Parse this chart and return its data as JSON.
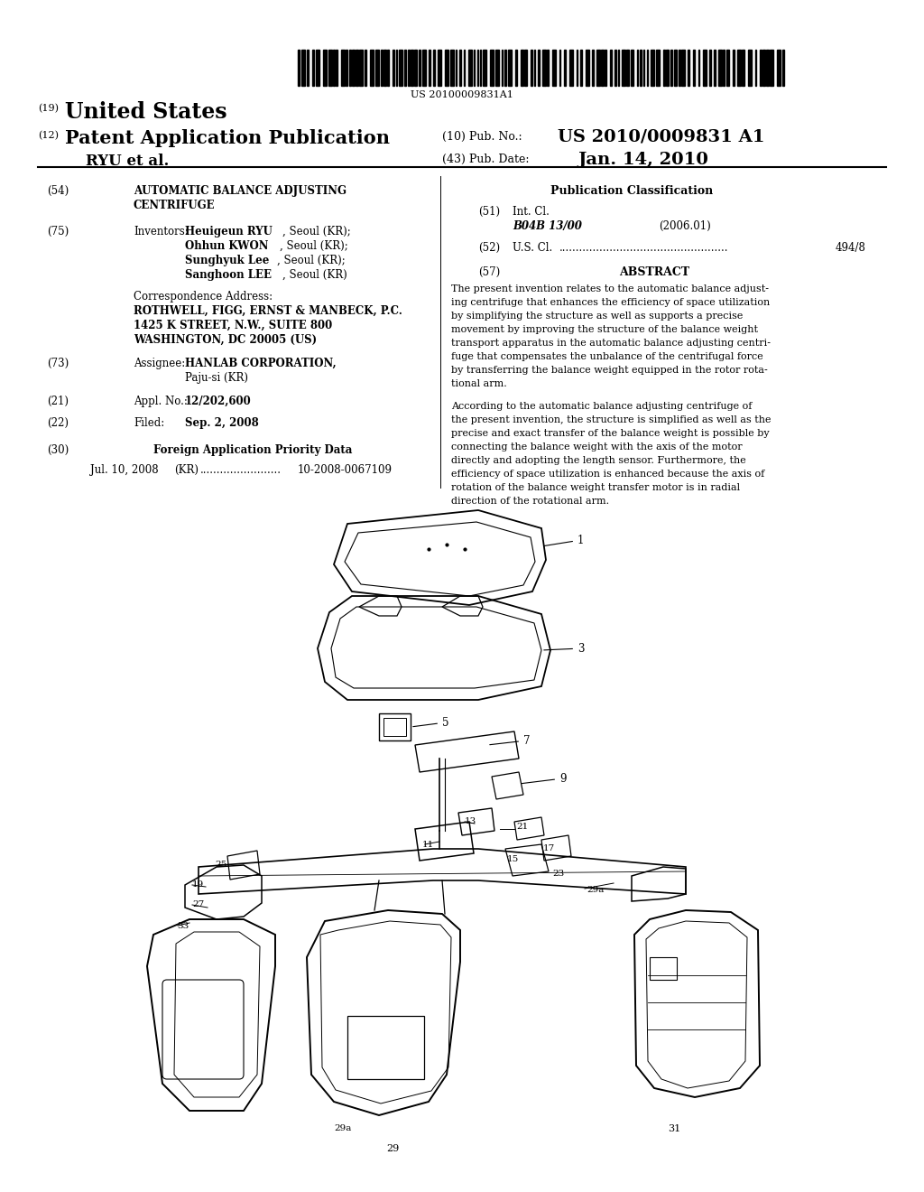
{
  "background_color": "#ffffff",
  "barcode_text": "US 20100009831A1",
  "pub_no": "US 2010/0009831 A1",
  "pub_date": "Jan. 14, 2010",
  "inventors": [
    "Heuigeun RYU, Seoul (KR);",
    "Ohhun KWON, Seoul (KR);",
    "Sunghyuk Lee, Seoul (KR);",
    "Sanghoon LEE, Seoul (KR)"
  ],
  "corr1": "ROTHWELL, FIGG, ERNST & MANBECK, P.C.",
  "corr2": "1425 K STREET, N.W., SUITE 800",
  "corr3": "WASHINGTON, DC 20005 (US)",
  "assignee1": "HANLAB CORPORATION,",
  "assignee2": "Paju-si (KR)",
  "appl_no": "12/202,600",
  "filed": "Sep. 2, 2008",
  "priority_date": "Jul. 10, 2008",
  "priority_country": "(KR)",
  "priority_number": "10-2008-0067109",
  "int_cl_class": "B04B 13/00",
  "int_cl_year": "(2006.01)",
  "us_cl": "494/8",
  "abstract1": "The present invention relates to the automatic balance adjust-ing centrifuge that enhances the efficiency of space utilization by simplifying the structure as well as supports a precise movement by improving the structure of the balance weight transport apparatus in the automatic balance adjusting centri-fuge that compensates the unbalance of the centrifugal force by transferring the balance weight equipped in the rotor rota-tional arm.",
  "abstract2": "According to the automatic balance adjusting centrifuge of the present invention, the structure is simplified as well as the precise and exact transfer of the balance weight is possible by connecting the balance weight with the axis of the motor directly and adopting the length sensor. Furthermore, the efficiency of space utilization is enhanced because the axis of rotation of the balance weight transfer motor is in radial direction of the rotational arm."
}
